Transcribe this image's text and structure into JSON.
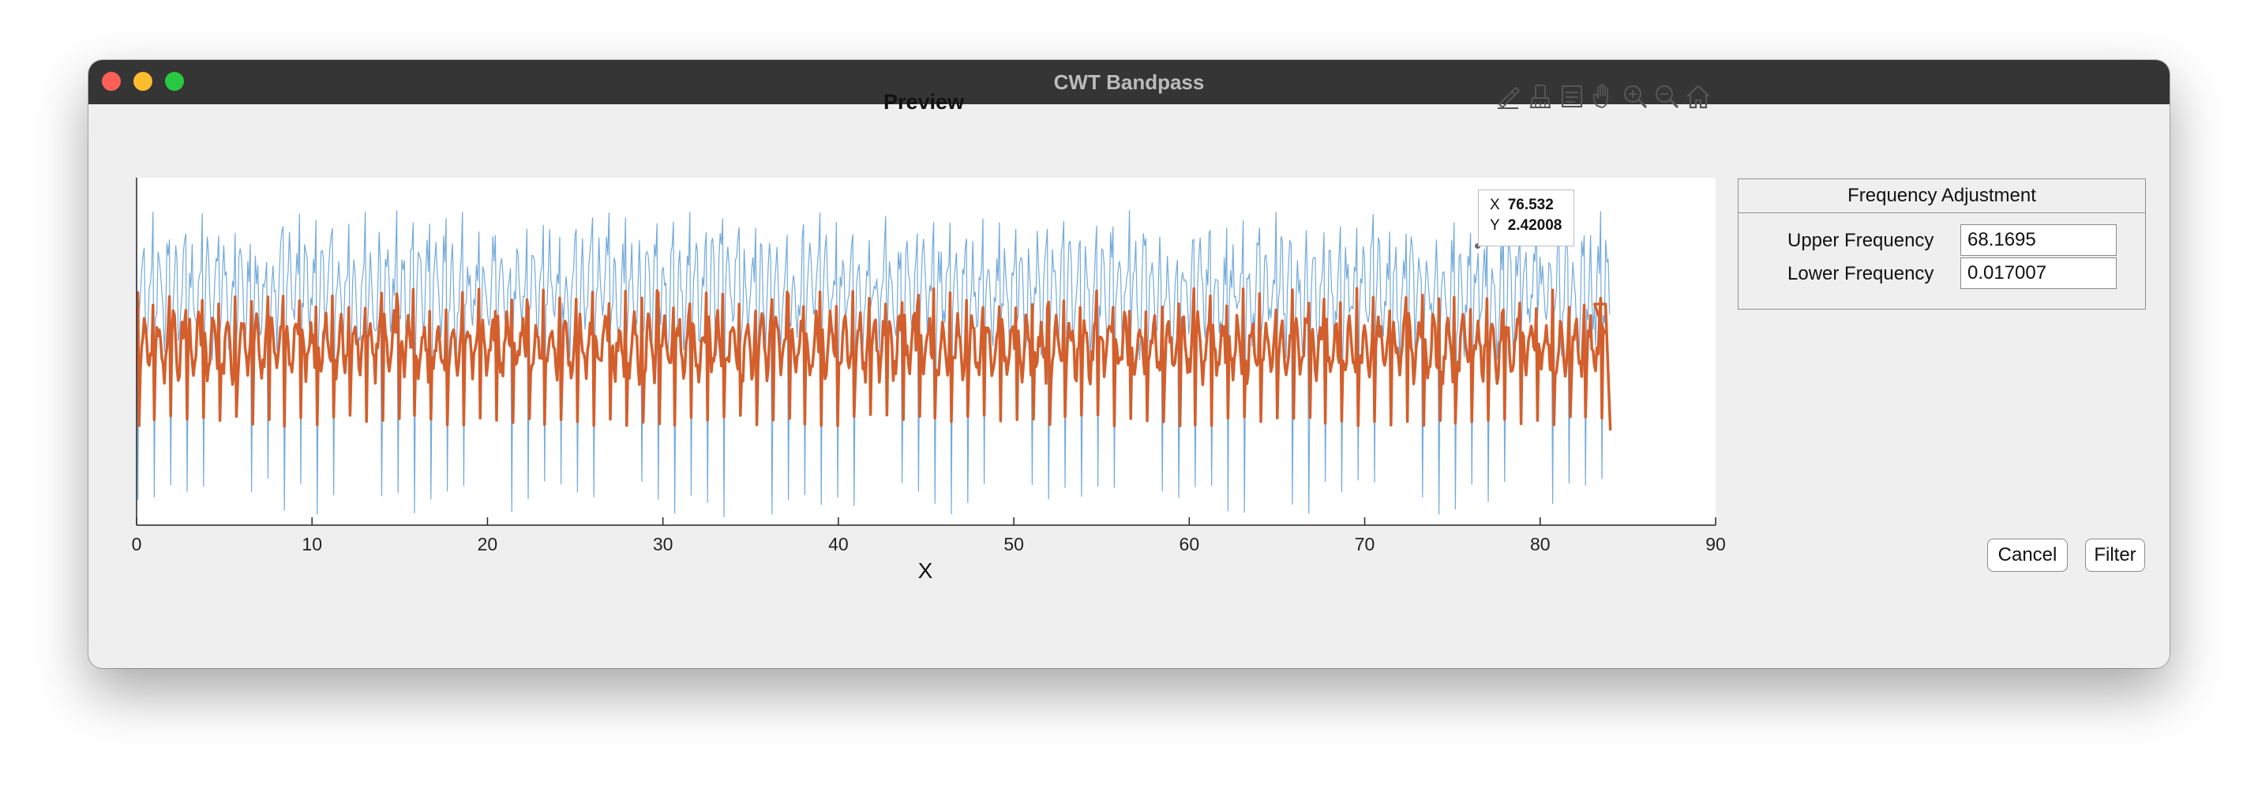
{
  "window": {
    "title": "CWT Bandpass",
    "controls": [
      "close",
      "minimize",
      "zoom"
    ]
  },
  "toolbar": {
    "icons": [
      "brush-icon",
      "eraser-icon",
      "data-tips-icon",
      "pan-hand-icon",
      "zoom-in-icon",
      "zoom-out-icon",
      "home-icon"
    ]
  },
  "chart_data": {
    "type": "line",
    "title": "Preview",
    "xlabel": "X",
    "ylabel": "",
    "xlim": [
      0,
      90
    ],
    "xticks": [
      "0",
      "10",
      "20",
      "30",
      "40",
      "50",
      "60",
      "70",
      "80",
      "90"
    ],
    "grid": false,
    "series": [
      {
        "color": "#5b9bd5",
        "x_range": [
          0,
          84
        ],
        "description_points": []
      },
      {
        "color": "#d35f2c",
        "x_range": [
          0,
          84
        ],
        "description_points": []
      }
    ],
    "datatip": {
      "x_label": "X",
      "x_value": "76.532",
      "y_label": "Y",
      "y_value": "2.42008"
    }
  },
  "panel": {
    "title": "Frequency Adjustment",
    "upper_label": "Upper Frequency",
    "upper_value": "68.1695",
    "lower_label": "Lower Frequency",
    "lower_value": "0.017007"
  },
  "buttons": {
    "cancel": "Cancel",
    "filter": "Filter"
  },
  "colors": {
    "raw_signal": "#5b9bd5",
    "filtered_signal": "#d35f2c",
    "titlebar": "#353535",
    "window_bg": "#efefef"
  }
}
